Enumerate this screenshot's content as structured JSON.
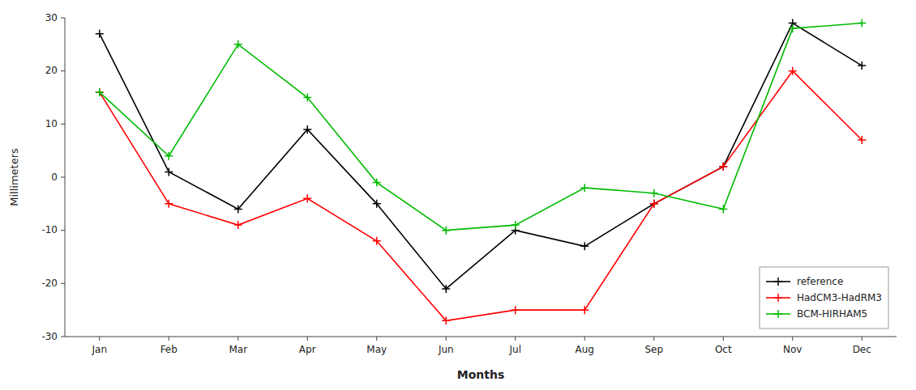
{
  "chart_data": {
    "type": "line",
    "xlabel": "Months",
    "ylabel": "Millimeters",
    "categories": [
      "Jan",
      "Feb",
      "Mar",
      "Apr",
      "May",
      "Jun",
      "Jul",
      "Aug",
      "Sep",
      "Oct",
      "Nov",
      "Dec"
    ],
    "series": [
      {
        "name": "reference",
        "color": "#000000",
        "marker": "plus",
        "values": [
          27,
          1,
          -6,
          9,
          -5,
          -21,
          -10,
          -13,
          -5,
          2,
          29,
          21
        ]
      },
      {
        "name": "HadCM3-HadRM3",
        "color": "#ff0000",
        "marker": "plus",
        "values": [
          16,
          -5,
          -9,
          -4,
          -12,
          -27,
          -25,
          -25,
          -5,
          2,
          20,
          7
        ]
      },
      {
        "name": "BCM-HIRHAM5",
        "color": "#00bb00",
        "marker": "plus",
        "values": [
          16,
          4,
          25,
          15,
          -1,
          -10,
          -9,
          -2,
          -3,
          -6,
          28,
          29
        ]
      }
    ],
    "ylim": [
      -30,
      30
    ],
    "yticks": [
      -30,
      -20,
      -10,
      0,
      10,
      20,
      30
    ],
    "grid": false,
    "legend": "lower right"
  }
}
